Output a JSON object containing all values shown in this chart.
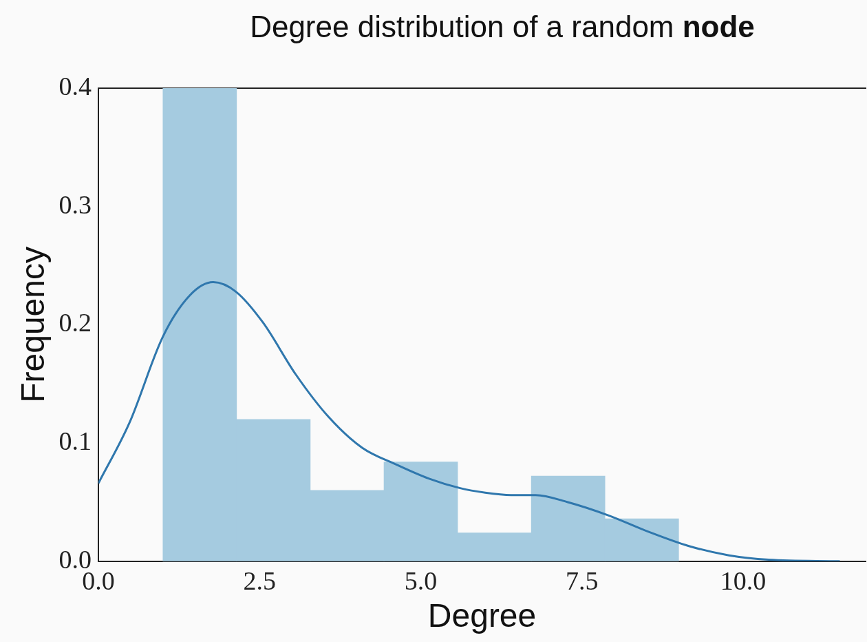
{
  "chart_data": {
    "type": "histogram",
    "title": "Degree distribution of a random node",
    "xlabel": "Degree",
    "ylabel": "Frequency",
    "bins": [
      1,
      2.143,
      3.286,
      4.429,
      5.571,
      6.714,
      7.857,
      9
    ],
    "values": [
      0.4,
      0.12,
      0.06,
      0.084,
      0.024,
      0.072,
      0.036
    ],
    "color": "#a5cbe0",
    "xlim": [
      0,
      11.9
    ],
    "xticks": [
      {
        "value": 0,
        "label": "0.0"
      },
      2.5,
      {
        "value": 5,
        "label": "5.0"
      },
      7.5,
      {
        "value": 10,
        "label": "10.0"
      }
    ],
    "ylim": [
      0,
      0.4
    ],
    "yticks": [
      {
        "value": 0,
        "label": "0.0"
      },
      0.1,
      0.2,
      0.3,
      0.4
    ],
    "grid": false,
    "legend": false,
    "series": [
      {
        "type": "line",
        "color": "#2f77ad",
        "marker": "none",
        "x": [
          0,
          0.48,
          1.0,
          1.42,
          1.78,
          2.13,
          2.55,
          3.06,
          3.57,
          4.09,
          4.61,
          5.12,
          5.6,
          6.0,
          6.4,
          6.78,
          7.28,
          7.9,
          8.53,
          9.15,
          9.78,
          10.4,
          11.5
        ],
        "values": [
          0.066,
          0.117,
          0.19,
          0.225,
          0.236,
          0.228,
          0.202,
          0.158,
          0.122,
          0.096,
          0.082,
          0.07,
          0.062,
          0.058,
          0.056,
          0.056,
          0.05,
          0.039,
          0.025,
          0.013,
          0.005,
          0.0013,
          0
        ]
      }
    ]
  }
}
